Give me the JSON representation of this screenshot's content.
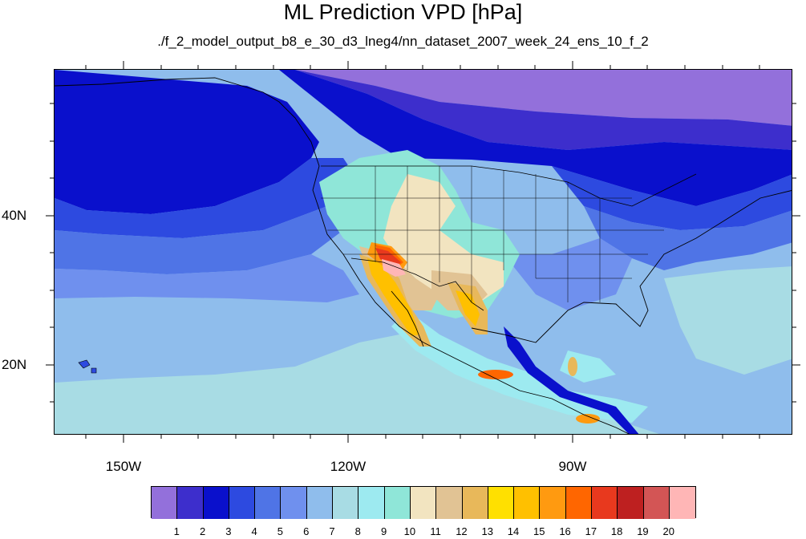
{
  "figure": {
    "title": "ML Prediction VPD [hPa]",
    "subtitle": "./f_2_model_output_b8_e_30_d3_lneg4/nn_dataset_2007_week_24_ens_10_f_2"
  },
  "axes": {
    "lat_labels": [
      "40N",
      "20N"
    ],
    "lon_labels": [
      "150W",
      "120W",
      "90W"
    ]
  },
  "colorbar": {
    "labels": [
      "1",
      "2",
      "3",
      "4",
      "5",
      "6",
      "7",
      "8",
      "9",
      "10",
      "11",
      "12",
      "13",
      "14",
      "15",
      "16",
      "17",
      "18",
      "19",
      "20"
    ],
    "colors": [
      "#9370DB",
      "#3D2ECC",
      "#0A10CC",
      "#2D4AE0",
      "#4F74E6",
      "#6F90EE",
      "#8FBDEC",
      "#A8DCE4",
      "#9DEAF0",
      "#8FE6D8",
      "#F2E4C0",
      "#E1C394",
      "#E8B85A",
      "#FFE000",
      "#FFC000",
      "#FF9A10",
      "#FF6600",
      "#E8391E",
      "#BE2020",
      "#D35555",
      "#FFB6B6"
    ]
  }
}
